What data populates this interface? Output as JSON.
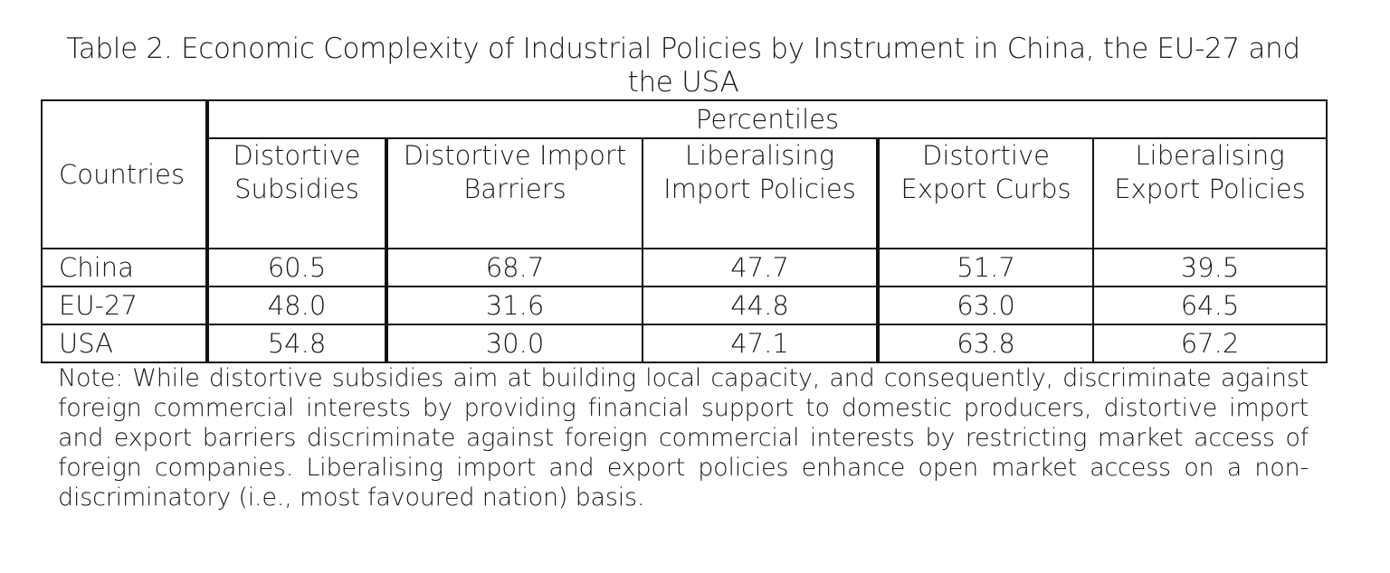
{
  "caption": "Table 2. Economic Complexity of Industrial Policies by Instrument in China, the EU-27 and the USA",
  "table": {
    "countries_header": "Countries",
    "group_header": "Percentiles",
    "columns": [
      "Distortive Subsidies",
      "Distortive Import Barriers",
      "Liberalising Import Policies",
      "Distortive Export Curbs",
      "Liberalising Export Policies"
    ],
    "rows": [
      {
        "country": "China",
        "values": [
          "60.5",
          "68.7",
          "47.7",
          "51.7",
          "39.5"
        ]
      },
      {
        "country": "EU-27",
        "values": [
          "48.0",
          "31.6",
          "44.8",
          "63.0",
          "64.5"
        ]
      },
      {
        "country": "USA",
        "values": [
          "54.8",
          "30.0",
          "47.1",
          "63.8",
          "67.2"
        ]
      }
    ]
  },
  "note": "Note: While distortive subsidies aim at building local capacity, and consequently, discriminate against foreign commercial interests by providing financial support to domestic producers, distortive import and export barriers discriminate against foreign commercial interests by restricting market access of foreign companies. Liberalising import and export policies enhance open market access on a non-discriminatory (i.e., most favoured nation) basis."
}
